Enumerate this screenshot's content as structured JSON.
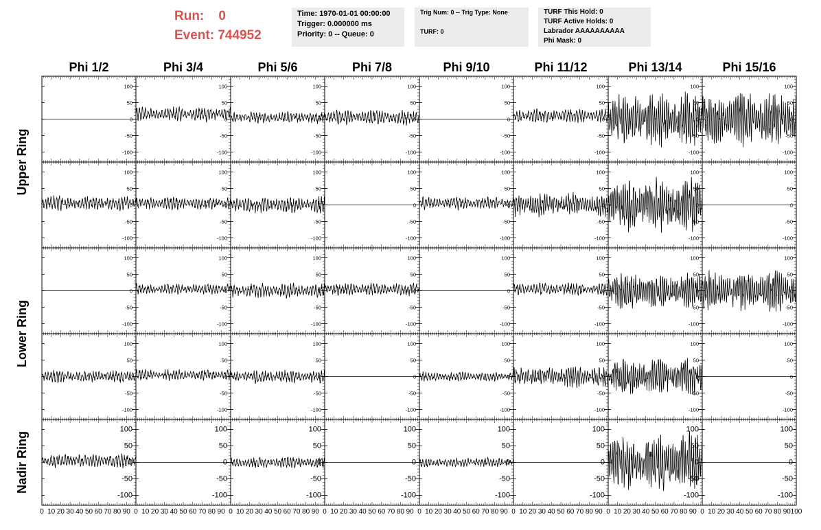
{
  "header": {
    "run_label": "Run:",
    "run_value": "0",
    "event_label": "Event:",
    "event_value": "744952"
  },
  "info_boxes": [
    {
      "lines": [
        "Time: 1970-01-01 00:00:00",
        "Trigger: 0.000000 ms",
        "Priority: 0 -- Queue: 0"
      ]
    },
    {
      "lines": [
        "Trig Num: 0 -- Trig Type: None",
        "TURF: 0"
      ]
    },
    {
      "lines": [
        "TURF This Hold: 0",
        "TURF Active Holds: 0",
        "Labrador AAAAAAAAAA",
        "Phi Mask: 0"
      ]
    }
  ],
  "colors": {
    "accent": "#d9534f",
    "trace": "#000000",
    "box_bg": "#ececec"
  },
  "chart_data": {
    "type": "line",
    "title": "",
    "columns": [
      "Phi 1/2",
      "Phi 3/4",
      "Phi 5/6",
      "Phi 7/8",
      "Phi 9/10",
      "Phi 11/12",
      "Phi 13/14",
      "Phi 15/16"
    ],
    "rows": [
      "Upper Ring",
      "Lower Ring",
      "Nadir Ring"
    ],
    "x_ticks": [
      0,
      10,
      20,
      30,
      40,
      50,
      60,
      70,
      80,
      90,
      100
    ],
    "xlim": [
      0,
      100
    ],
    "y_ticks": [
      -100,
      -50,
      0,
      50,
      100
    ],
    "ylim": [
      -130,
      130
    ],
    "nadir_y_ticks": [
      -100,
      -50,
      0,
      50,
      100
    ],
    "nadir_ylim": [
      -130,
      130
    ],
    "panels_amplitude": [
      [
        0,
        18,
        15,
        18,
        0,
        18,
        65,
        65
      ],
      [
        18,
        16,
        20,
        0,
        16,
        28,
        65,
        0
      ],
      [
        0,
        14,
        18,
        16,
        0,
        16,
        45,
        50
      ],
      [
        15,
        14,
        16,
        0,
        12,
        26,
        45,
        0
      ],
      [
        17,
        0,
        14,
        0,
        12,
        0,
        75,
        0
      ]
    ],
    "panels_offset": [
      [
        0,
        15,
        5,
        5,
        0,
        10,
        0,
        0
      ],
      [
        5,
        5,
        0,
        0,
        5,
        0,
        0,
        0
      ],
      [
        0,
        5,
        0,
        5,
        0,
        5,
        0,
        0
      ],
      [
        0,
        5,
        0,
        0,
        0,
        0,
        0,
        0
      ],
      [
        5,
        0,
        0,
        0,
        0,
        0,
        0,
        0
      ]
    ],
    "panels_period": [
      [
        0,
        3,
        3,
        3,
        0,
        3,
        2.2,
        2.2
      ],
      [
        3,
        3,
        3,
        0,
        3,
        2.5,
        2.2,
        0
      ],
      [
        0,
        3,
        3,
        3,
        0,
        3,
        2.2,
        2.2
      ],
      [
        3,
        3,
        3,
        0,
        3,
        2.5,
        2.2,
        0
      ],
      [
        3,
        0,
        3,
        0,
        3,
        0,
        2.2,
        0
      ]
    ]
  }
}
